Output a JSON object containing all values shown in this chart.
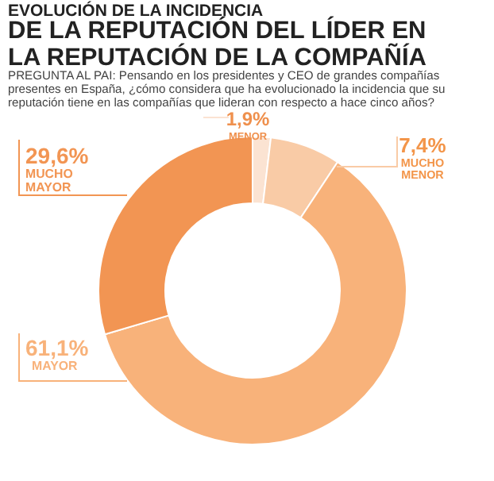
{
  "chart_data": {
    "type": "donut",
    "title": "EVOLUCIÓN DE LA INCIDENCIA",
    "subtitle": "DE LA REPUTACIÓN DEL LÍDER EN LA REPUTACIÓN DE LA COMPAÑÍA",
    "annotations": [
      "PREGUNTA AL PAI: Pensando en los presidentes y CEO de grandes compañías presentes en España, ¿cómo considera que ha evolucionado la incidencia que su reputación tiene en las compañías que lideran con respecto a hace cinco años?"
    ],
    "categories": [
      "MENOR",
      "MUCHO MENOR",
      "MAYOR",
      "MUCHO MAYOR"
    ],
    "values": [
      1.9,
      7.4,
      61.1,
      29.6
    ],
    "value_labels": [
      "1,9%",
      "7,4%",
      "61,1%",
      "29,6%"
    ],
    "colors": [
      "#fbe3d2",
      "#f9cba6",
      "#f8b27a",
      "#f29553"
    ]
  }
}
